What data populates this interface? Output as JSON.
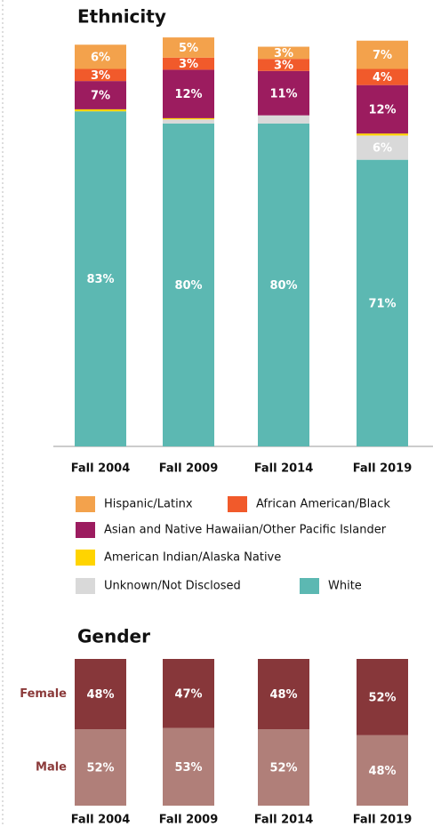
{
  "chart_data": [
    {
      "type": "bar",
      "stacked": true,
      "title": "Ethnicity",
      "categories": [
        "Fall 2004",
        "Fall 2009",
        "Fall 2014",
        "Fall 2019"
      ],
      "series": [
        {
          "name": "Hispanic/Latinx",
          "color": "#f3a24c",
          "values": [
            6,
            5,
            3,
            7
          ],
          "value_labels": [
            "6%",
            "5%",
            "3%",
            "7%"
          ]
        },
        {
          "name": "African American/Black",
          "color": "#f15a2b",
          "values": [
            3,
            3,
            3,
            4
          ],
          "value_labels": [
            "3%",
            "3%",
            "3%",
            "4%"
          ]
        },
        {
          "name": "Asian and Native Hawaiian/Other Pacific Islander",
          "color": "#9c1c5f",
          "values": [
            7,
            12,
            11,
            12
          ],
          "value_labels": [
            "7%",
            "12%",
            "11%",
            "12%"
          ]
        },
        {
          "name": "American Indian/Alaska Native",
          "color": "#ffd400",
          "values": [
            0.5,
            0.3,
            0,
            0.5
          ],
          "value_labels": [
            null,
            null,
            null,
            null
          ]
        },
        {
          "name": "Unknown/Not Disclosed",
          "color": "#d9d9d9",
          "values": [
            0,
            1,
            2,
            6
          ],
          "value_labels": [
            null,
            null,
            null,
            "6%"
          ]
        },
        {
          "name": "White",
          "color": "#5cb8b2",
          "values": [
            83,
            80,
            80,
            71
          ],
          "value_labels": [
            "83%",
            "80%",
            "80%",
            "71%"
          ]
        }
      ],
      "ylim": [
        0,
        100
      ]
    },
    {
      "type": "bar",
      "stacked": true,
      "title": "Gender",
      "categories": [
        "Fall 2004",
        "Fall 2009",
        "Fall 2014",
        "Fall 2019"
      ],
      "series": [
        {
          "name": "Female",
          "color": "#87373a",
          "values": [
            48,
            47,
            48,
            52
          ],
          "value_labels": [
            "48%",
            "47%",
            "48%",
            "52%"
          ]
        },
        {
          "name": "Male",
          "color": "#b07f79",
          "values": [
            52,
            53,
            52,
            48
          ],
          "value_labels": [
            "52%",
            "53%",
            "52%",
            "48%"
          ]
        }
      ],
      "ylim": [
        0,
        100
      ]
    }
  ]
}
